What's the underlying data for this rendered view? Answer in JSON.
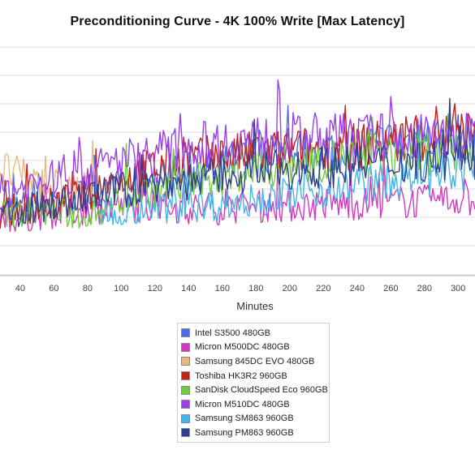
{
  "chart_data": {
    "type": "line",
    "title": "Preconditioning Curve - 4K 100% Write [Max Latency]",
    "xlabel": "Minutes",
    "ylabel": "",
    "x_ticks": [
      40,
      60,
      80,
      100,
      120,
      140,
      160,
      180,
      200,
      220,
      240,
      260,
      280,
      300
    ],
    "xlim": [
      28,
      310
    ],
    "ylim": [
      0,
      10
    ],
    "grid": true,
    "legend_position": "bottom-center",
    "series": [
      {
        "name": "Intel S3500 480GB",
        "color": "#4d6fe6",
        "x": [
          28,
          40,
          60,
          80,
          100,
          120,
          140,
          160,
          180,
          190,
          200,
          220,
          240,
          260,
          280,
          300,
          310
        ],
        "values": [
          2.8,
          3.0,
          3.3,
          3.5,
          3.9,
          4.2,
          4.5,
          4.7,
          5.2,
          5.5,
          5.3,
          5.4,
          5.6,
          5.8,
          5.9,
          6.0,
          6.0
        ]
      },
      {
        "name": "Micron M500DC 480GB",
        "color": "#d23bbd",
        "x": [
          28,
          40,
          60,
          80,
          100,
          120,
          140,
          160,
          180,
          200,
          220,
          240,
          260,
          280,
          300,
          310
        ],
        "values": [
          2.4,
          2.5,
          2.7,
          2.9,
          3.0,
          3.0,
          2.9,
          2.9,
          3.0,
          3.0,
          3.1,
          3.1,
          3.2,
          3.2,
          3.3,
          3.3
        ]
      },
      {
        "name": "Samsung 845DC EVO 480GB",
        "color": "#e8b985",
        "x": [
          28,
          40,
          50,
          60,
          70,
          80,
          85
        ],
        "values": [
          4.6,
          4.3,
          4.0,
          3.9,
          3.8,
          3.7,
          3.6
        ]
      },
      {
        "name": "Toshiba HK3R2 960GB",
        "color": "#c0211e",
        "x": [
          28,
          40,
          60,
          80,
          100,
          120,
          140,
          160,
          180,
          200,
          220,
          240,
          260,
          280,
          300,
          310
        ],
        "values": [
          2.7,
          2.9,
          3.1,
          3.6,
          4.2,
          4.7,
          5.0,
          5.2,
          5.3,
          5.4,
          5.5,
          5.6,
          5.8,
          5.9,
          6.1,
          6.1
        ]
      },
      {
        "name": "SanDisk CloudSpeed Eco 960GB",
        "color": "#6fcd3c",
        "x": [
          30,
          40,
          60,
          80,
          100,
          120,
          140,
          160,
          180,
          200,
          220,
          240,
          260,
          280,
          300,
          310
        ],
        "values": [
          2.7,
          2.8,
          2.7,
          2.6,
          3.3,
          3.7,
          4.0,
          4.3,
          4.6,
          4.8,
          5.0,
          5.1,
          5.2,
          5.3,
          5.3,
          5.3
        ]
      },
      {
        "name": "Micron M510DC 480GB",
        "color": "#9b3fe8",
        "x": [
          28,
          40,
          60,
          80,
          100,
          120,
          140,
          160,
          180,
          200,
          220,
          240,
          260,
          280,
          300,
          310
        ],
        "values": [
          3.6,
          3.8,
          4.2,
          4.5,
          5.0,
          5.3,
          5.6,
          5.8,
          5.9,
          6.0,
          6.0,
          6.0,
          6.0,
          6.0,
          6.0,
          6.0
        ]
      },
      {
        "name": "Samsung SM863 960GB",
        "color": "#45b4ea",
        "x": [
          88,
          100,
          120,
          140,
          160,
          180,
          200,
          220,
          240,
          260,
          280,
          300,
          310
        ],
        "values": [
          2.8,
          2.9,
          2.9,
          3.0,
          3.1,
          3.3,
          3.5,
          3.7,
          3.9,
          4.1,
          4.2,
          4.4,
          4.5
        ]
      },
      {
        "name": "Samsung PM863 960GB",
        "color": "#2d3f8e",
        "x": [
          28,
          40,
          60,
          80,
          100,
          120,
          140,
          160,
          180,
          200,
          220,
          240,
          260,
          280,
          300,
          310
        ],
        "values": [
          2.6,
          2.8,
          3.1,
          3.4,
          3.7,
          3.9,
          4.1,
          4.3,
          4.5,
          4.6,
          4.7,
          4.8,
          4.9,
          5.0,
          5.0,
          5.0
        ]
      }
    ]
  }
}
